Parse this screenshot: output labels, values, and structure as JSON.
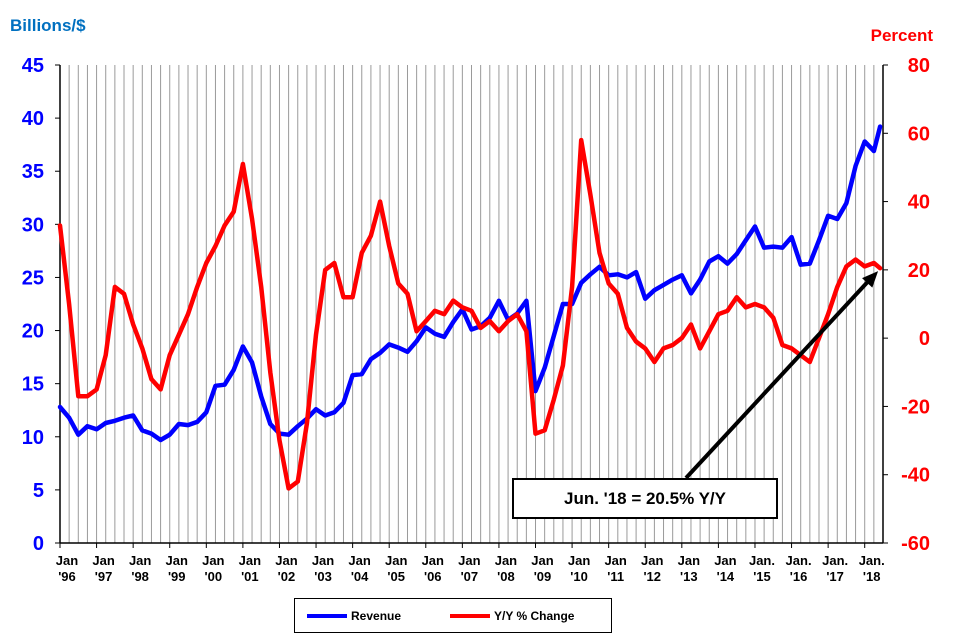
{
  "chart_data": {
    "type": "line",
    "title": "",
    "left_axis": {
      "label": "Billions/$",
      "min": 0,
      "max": 45,
      "ticks": [
        0,
        5,
        10,
        15,
        20,
        25,
        30,
        35,
        40,
        45
      ]
    },
    "right_axis": {
      "label": "Percent",
      "min": -60,
      "max": 80,
      "ticks": [
        -60,
        -40,
        -20,
        0,
        20,
        40,
        60,
        80
      ]
    },
    "x_axis": {
      "range": [
        1996.0,
        2018.5
      ],
      "tick_labels": [
        [
          "Jan",
          "'96"
        ],
        [
          "Jan",
          "'97"
        ],
        [
          "Jan",
          "'98"
        ],
        [
          "Jan",
          "'99"
        ],
        [
          "Jan",
          "'00"
        ],
        [
          "Jan",
          "'01"
        ],
        [
          "Jan",
          "'02"
        ],
        [
          "Jan",
          "'03"
        ],
        [
          "Jan",
          "'04"
        ],
        [
          "Jan",
          "'05"
        ],
        [
          "Jan",
          "'06"
        ],
        [
          "Jan",
          "'07"
        ],
        [
          "Jan",
          "'08"
        ],
        [
          "Jan",
          "'09"
        ],
        [
          "Jan",
          "'10"
        ],
        [
          "Jan",
          "'11"
        ],
        [
          "Jan",
          "'12"
        ],
        [
          "Jan",
          "'13"
        ],
        [
          "Jan",
          "'14"
        ],
        [
          "Jan.",
          "'15"
        ],
        [
          "Jan.",
          "'16"
        ],
        [
          "Jan.",
          "'17"
        ],
        [
          "Jan.",
          "'18"
        ]
      ]
    },
    "grid": "vertical",
    "legend_position": "bottom-center",
    "series": [
      {
        "name": "Revenue",
        "axis": "left",
        "color": "#0000ff",
        "points": [
          [
            1996.0,
            12.8
          ],
          [
            1996.25,
            11.8
          ],
          [
            1996.5,
            10.2
          ],
          [
            1996.75,
            11.0
          ],
          [
            1997.0,
            10.7
          ],
          [
            1997.25,
            11.3
          ],
          [
            1997.5,
            11.5
          ],
          [
            1997.75,
            11.8
          ],
          [
            1998.0,
            12.0
          ],
          [
            1998.25,
            10.6
          ],
          [
            1998.5,
            10.3
          ],
          [
            1998.75,
            9.7
          ],
          [
            1999.0,
            10.2
          ],
          [
            1999.25,
            11.2
          ],
          [
            1999.5,
            11.1
          ],
          [
            1999.75,
            11.4
          ],
          [
            2000.0,
            12.3
          ],
          [
            2000.25,
            14.8
          ],
          [
            2000.5,
            14.9
          ],
          [
            2000.75,
            16.3
          ],
          [
            2001.0,
            18.5
          ],
          [
            2001.25,
            17.0
          ],
          [
            2001.5,
            13.8
          ],
          [
            2001.75,
            11.2
          ],
          [
            2002.0,
            10.3
          ],
          [
            2002.25,
            10.2
          ],
          [
            2002.5,
            11.0
          ],
          [
            2002.75,
            11.7
          ],
          [
            2003.0,
            12.6
          ],
          [
            2003.25,
            12.0
          ],
          [
            2003.5,
            12.3
          ],
          [
            2003.75,
            13.2
          ],
          [
            2004.0,
            15.8
          ],
          [
            2004.25,
            15.9
          ],
          [
            2004.5,
            17.3
          ],
          [
            2004.75,
            17.9
          ],
          [
            2005.0,
            18.7
          ],
          [
            2005.25,
            18.4
          ],
          [
            2005.5,
            18.0
          ],
          [
            2005.75,
            19.0
          ],
          [
            2006.0,
            20.3
          ],
          [
            2006.25,
            19.7
          ],
          [
            2006.5,
            19.4
          ],
          [
            2006.75,
            20.8
          ],
          [
            2007.0,
            22.0
          ],
          [
            2007.25,
            20.1
          ],
          [
            2007.5,
            20.4
          ],
          [
            2007.75,
            21.2
          ],
          [
            2008.0,
            22.8
          ],
          [
            2008.25,
            21.0
          ],
          [
            2008.5,
            21.6
          ],
          [
            2008.75,
            22.8
          ],
          [
            2009.0,
            14.3
          ],
          [
            2009.25,
            16.5
          ],
          [
            2009.5,
            19.5
          ],
          [
            2009.75,
            22.5
          ],
          [
            2010.0,
            22.5
          ],
          [
            2010.25,
            24.5
          ],
          [
            2010.5,
            25.3
          ],
          [
            2010.75,
            26.0
          ],
          [
            2011.0,
            25.2
          ],
          [
            2011.25,
            25.3
          ],
          [
            2011.5,
            25.0
          ],
          [
            2011.75,
            25.5
          ],
          [
            2012.0,
            23.0
          ],
          [
            2012.25,
            23.8
          ],
          [
            2012.5,
            24.3
          ],
          [
            2012.75,
            24.8
          ],
          [
            2013.0,
            25.2
          ],
          [
            2013.25,
            23.5
          ],
          [
            2013.5,
            24.8
          ],
          [
            2013.75,
            26.5
          ],
          [
            2014.0,
            27.0
          ],
          [
            2014.25,
            26.3
          ],
          [
            2014.5,
            27.2
          ],
          [
            2014.75,
            28.5
          ],
          [
            2015.0,
            29.8
          ],
          [
            2015.25,
            27.8
          ],
          [
            2015.5,
            27.9
          ],
          [
            2015.75,
            27.8
          ],
          [
            2016.0,
            28.8
          ],
          [
            2016.25,
            26.2
          ],
          [
            2016.5,
            26.3
          ],
          [
            2016.75,
            28.5
          ],
          [
            2017.0,
            30.8
          ],
          [
            2017.25,
            30.5
          ],
          [
            2017.5,
            32.0
          ],
          [
            2017.75,
            35.5
          ],
          [
            2018.0,
            37.8
          ],
          [
            2018.25,
            36.9
          ],
          [
            2018.42,
            39.2
          ]
        ]
      },
      {
        "name": "Y/Y % Change",
        "axis": "right",
        "color": "#ff0000",
        "points": [
          [
            1996.0,
            33
          ],
          [
            1996.25,
            10
          ],
          [
            1996.5,
            -17
          ],
          [
            1996.75,
            -17
          ],
          [
            1997.0,
            -15
          ],
          [
            1997.25,
            -5
          ],
          [
            1997.5,
            15
          ],
          [
            1997.75,
            13
          ],
          [
            1998.0,
            4
          ],
          [
            1998.25,
            -3
          ],
          [
            1998.5,
            -12
          ],
          [
            1998.75,
            -15
          ],
          [
            1999.0,
            -5
          ],
          [
            1999.25,
            1
          ],
          [
            1999.5,
            7
          ],
          [
            1999.75,
            15
          ],
          [
            2000.0,
            22
          ],
          [
            2000.25,
            27
          ],
          [
            2000.5,
            33
          ],
          [
            2000.75,
            37
          ],
          [
            2001.0,
            51
          ],
          [
            2001.25,
            35
          ],
          [
            2001.5,
            15
          ],
          [
            2001.75,
            -10
          ],
          [
            2002.0,
            -30
          ],
          [
            2002.25,
            -44
          ],
          [
            2002.5,
            -42
          ],
          [
            2002.75,
            -25
          ],
          [
            2003.0,
            1
          ],
          [
            2003.25,
            20
          ],
          [
            2003.5,
            22
          ],
          [
            2003.75,
            12
          ],
          [
            2004.0,
            12
          ],
          [
            2004.25,
            25
          ],
          [
            2004.5,
            30
          ],
          [
            2004.75,
            40
          ],
          [
            2005.0,
            27
          ],
          [
            2005.25,
            16
          ],
          [
            2005.5,
            13
          ],
          [
            2005.75,
            2
          ],
          [
            2006.0,
            5
          ],
          [
            2006.25,
            8
          ],
          [
            2006.5,
            7
          ],
          [
            2006.75,
            11
          ],
          [
            2007.0,
            9
          ],
          [
            2007.25,
            8
          ],
          [
            2007.5,
            3
          ],
          [
            2007.75,
            5
          ],
          [
            2008.0,
            2
          ],
          [
            2008.25,
            5
          ],
          [
            2008.5,
            7
          ],
          [
            2008.75,
            2
          ],
          [
            2009.0,
            -28
          ],
          [
            2009.25,
            -27
          ],
          [
            2009.5,
            -18
          ],
          [
            2009.75,
            -8
          ],
          [
            2010.0,
            15
          ],
          [
            2010.25,
            58
          ],
          [
            2010.5,
            42
          ],
          [
            2010.75,
            25
          ],
          [
            2011.0,
            16
          ],
          [
            2011.25,
            13
          ],
          [
            2011.5,
            3
          ],
          [
            2011.75,
            -1
          ],
          [
            2012.0,
            -3
          ],
          [
            2012.25,
            -7
          ],
          [
            2012.5,
            -3
          ],
          [
            2012.75,
            -2
          ],
          [
            2013.0,
            0
          ],
          [
            2013.25,
            4
          ],
          [
            2013.5,
            -3
          ],
          [
            2013.75,
            2
          ],
          [
            2014.0,
            7
          ],
          [
            2014.25,
            8
          ],
          [
            2014.5,
            12
          ],
          [
            2014.75,
            9
          ],
          [
            2015.0,
            10
          ],
          [
            2015.25,
            9
          ],
          [
            2015.5,
            6
          ],
          [
            2015.75,
            -2
          ],
          [
            2016.0,
            -3
          ],
          [
            2016.25,
            -5
          ],
          [
            2016.5,
            -7
          ],
          [
            2016.75,
            0
          ],
          [
            2017.0,
            7
          ],
          [
            2017.25,
            15
          ],
          [
            2017.5,
            21
          ],
          [
            2017.75,
            23
          ],
          [
            2018.0,
            21
          ],
          [
            2018.25,
            22
          ],
          [
            2018.42,
            20.5
          ]
        ]
      }
    ],
    "annotation": {
      "text": "Jun. '18 = 20.5% Y/Y",
      "target": [
        2018.42,
        20.5
      ],
      "axis": "right"
    }
  }
}
